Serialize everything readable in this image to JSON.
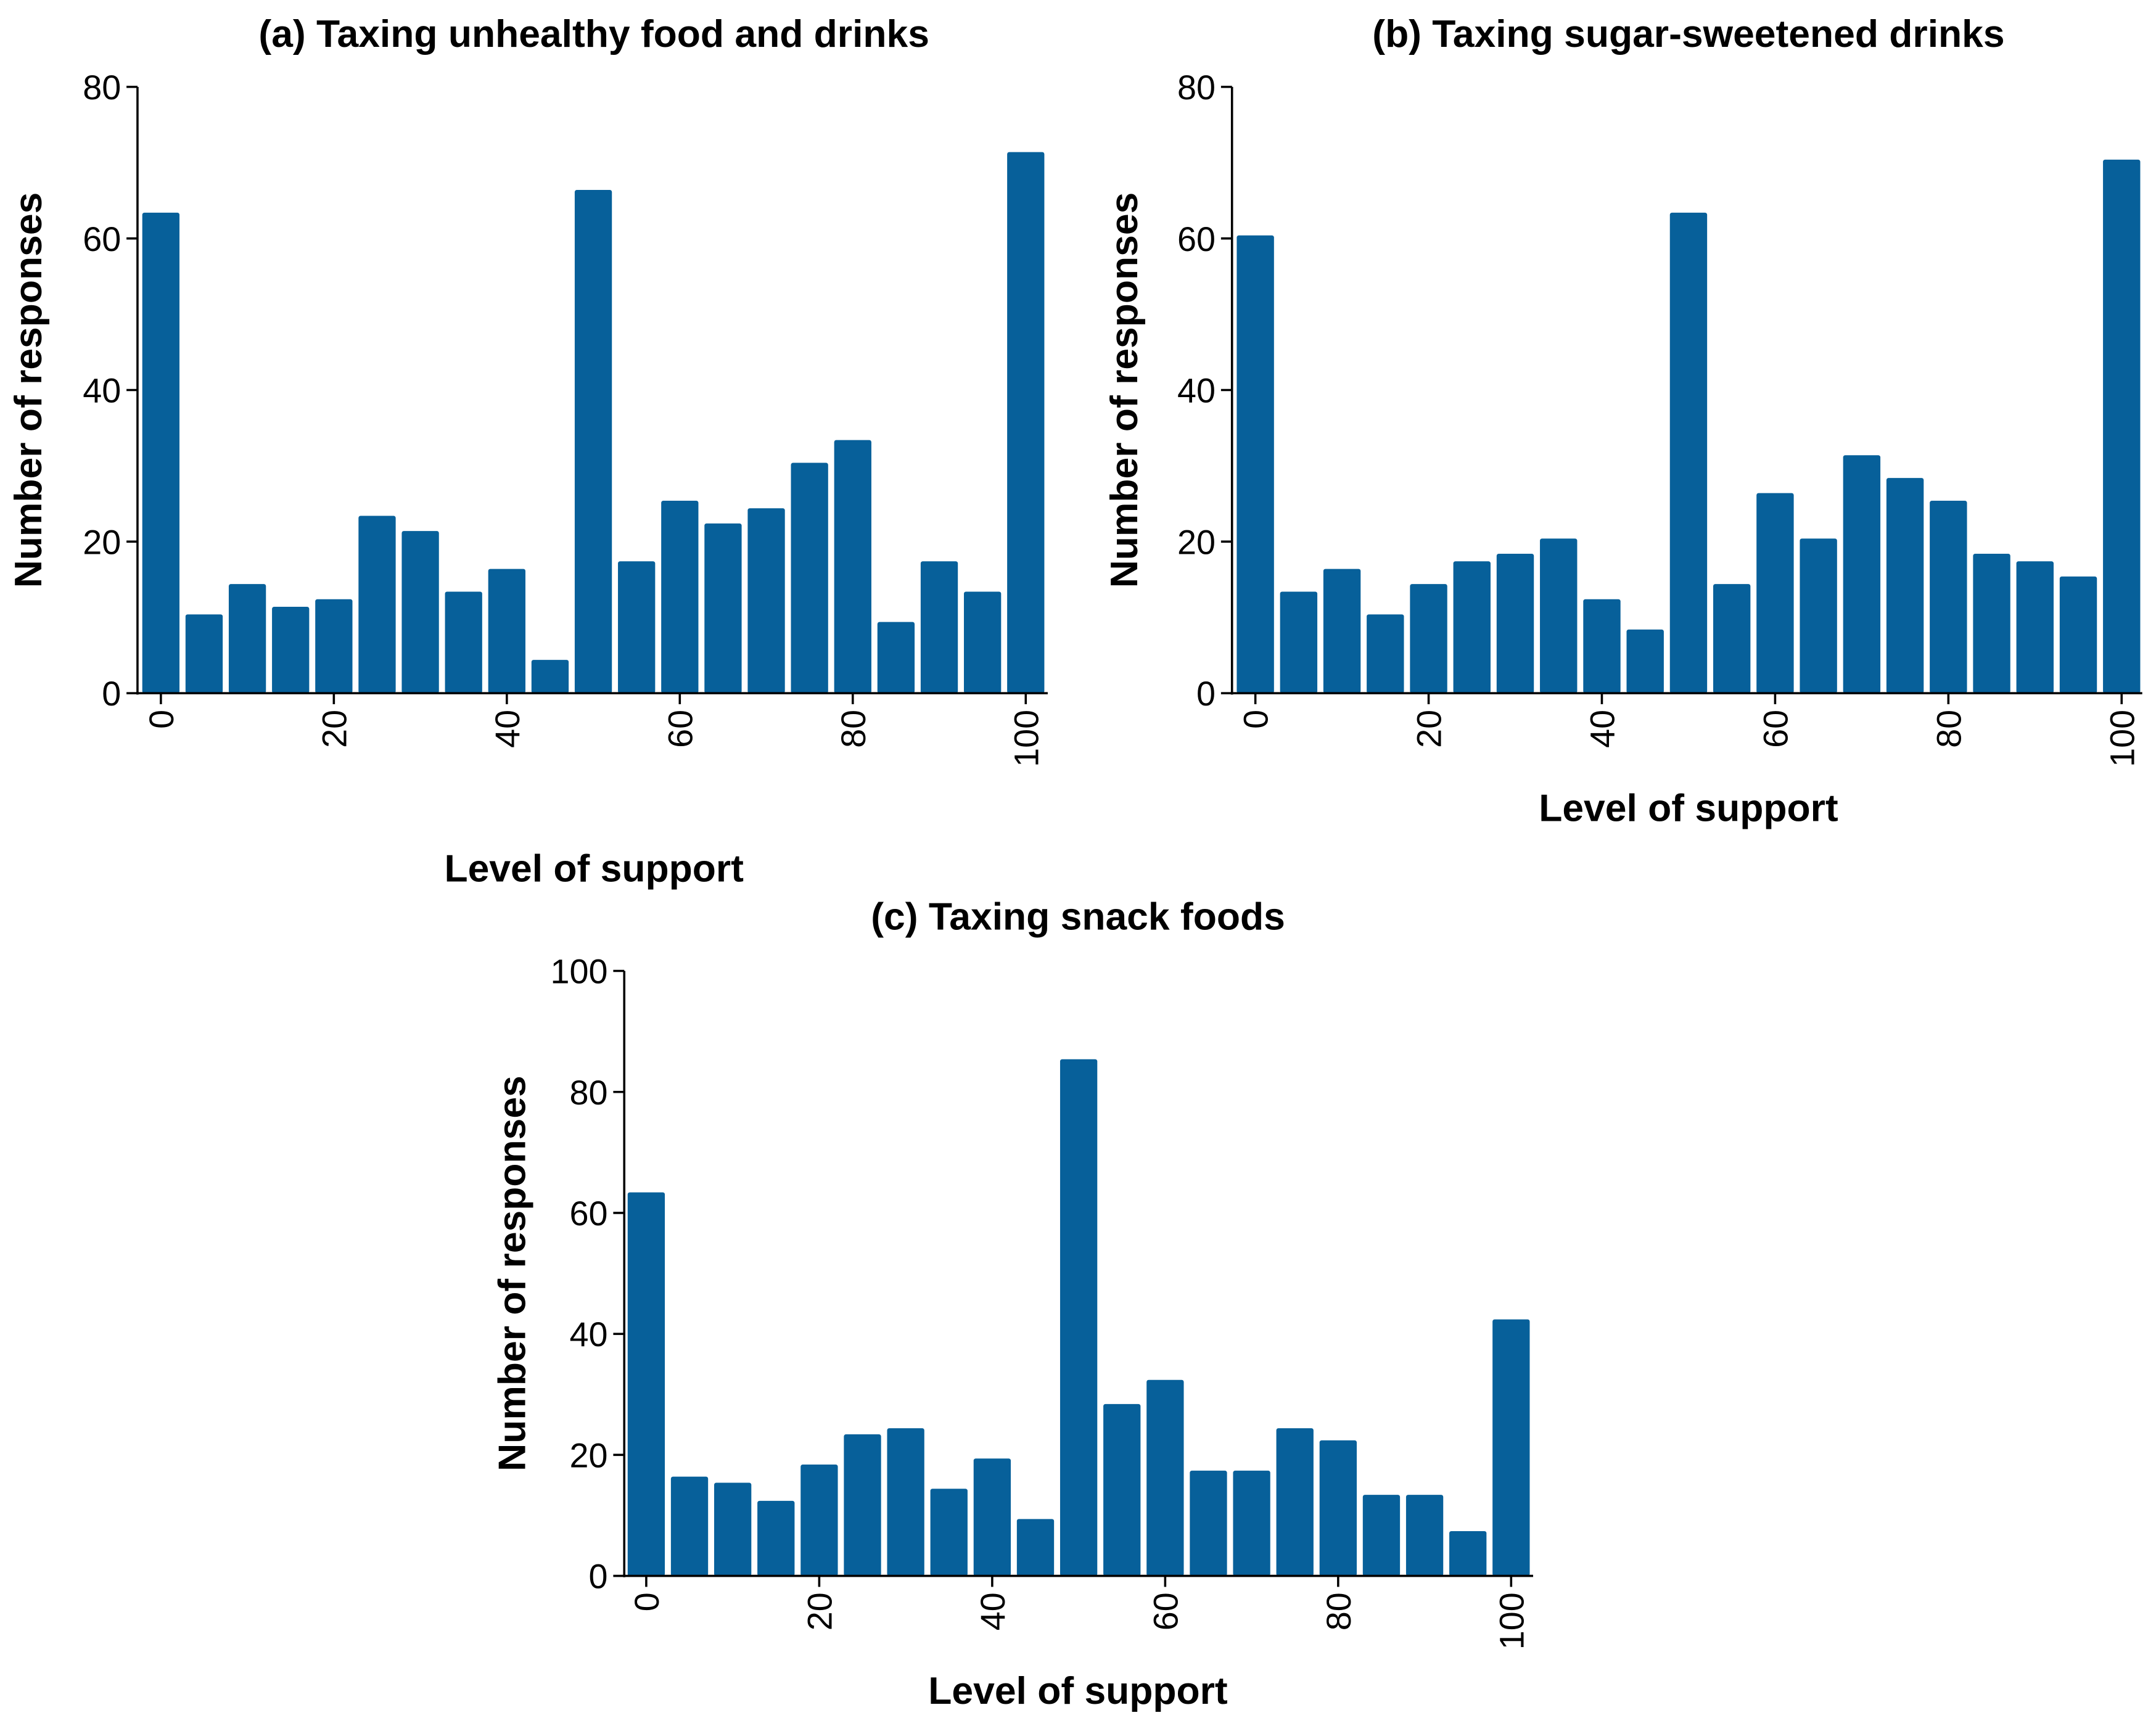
{
  "chart_data": [
    {
      "type": "bar",
      "title": "(a) Taxing unhealthy food and drinks",
      "xlabel": "Level of support",
      "ylabel": "Number of responses",
      "x": [
        0,
        5,
        10,
        15,
        20,
        25,
        30,
        35,
        40,
        45,
        50,
        55,
        60,
        65,
        70,
        75,
        80,
        85,
        90,
        95,
        100
      ],
      "values": [
        63,
        10,
        14,
        11,
        12,
        23,
        21,
        13,
        16,
        4,
        66,
        17,
        25,
        22,
        24,
        30,
        33,
        9,
        17,
        13,
        71
      ],
      "ylim": [
        0,
        80
      ],
      "yticks": [
        "0",
        "20",
        "40",
        "60",
        "80"
      ],
      "xticks": [
        "0",
        "20",
        "40",
        "60",
        "80",
        "100"
      ],
      "color": "#07609a",
      "grid": false
    },
    {
      "type": "bar",
      "title": "(b) Taxing sugar-sweetened drinks",
      "xlabel": "Level of support",
      "ylabel": "Number of responses",
      "x": [
        0,
        5,
        10,
        15,
        20,
        25,
        30,
        35,
        40,
        45,
        50,
        55,
        60,
        65,
        70,
        75,
        80,
        85,
        90,
        95,
        100
      ],
      "values": [
        60,
        13,
        16,
        10,
        14,
        17,
        18,
        20,
        12,
        8,
        63,
        14,
        26,
        20,
        31,
        28,
        25,
        18,
        17,
        15,
        70
      ],
      "ylim": [
        0,
        80
      ],
      "yticks": [
        "0",
        "20",
        "40",
        "60",
        "80"
      ],
      "xticks": [
        "0",
        "20",
        "40",
        "60",
        "80",
        "100"
      ],
      "color": "#07609a",
      "grid": false
    },
    {
      "type": "bar",
      "title": "(c) Taxing snack foods",
      "xlabel": "Level of support",
      "ylabel": "Number of responses",
      "x": [
        0,
        5,
        10,
        15,
        20,
        25,
        30,
        35,
        40,
        45,
        50,
        55,
        60,
        65,
        70,
        75,
        80,
        85,
        90,
        95,
        100
      ],
      "values": [
        63,
        16,
        15,
        12,
        18,
        23,
        24,
        14,
        19,
        9,
        85,
        28,
        32,
        17,
        17,
        24,
        22,
        13,
        13,
        7,
        42
      ],
      "ylim": [
        0,
        100
      ],
      "yticks": [
        "0",
        "20",
        "40",
        "60",
        "80",
        "100"
      ],
      "xticks": [
        "0",
        "20",
        "40",
        "60",
        "80",
        "100"
      ],
      "color": "#07609a",
      "grid": false
    }
  ]
}
